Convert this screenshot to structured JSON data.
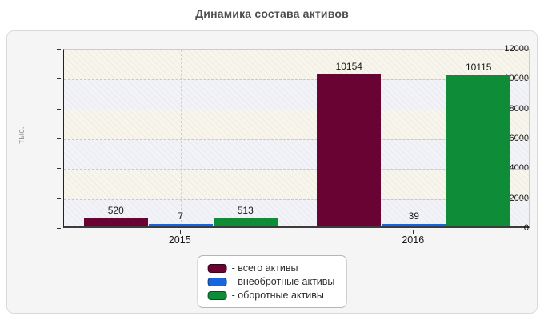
{
  "title": "Динамика состава активов",
  "chart_data": {
    "type": "bar",
    "categories": [
      "2015",
      "2016"
    ],
    "series": [
      {
        "name": "- всего активы",
        "color": "#690334",
        "values": [
          520,
          10154
        ]
      },
      {
        "name": "- внеобротные активы",
        "color": "#1766df",
        "values": [
          7,
          39
        ]
      },
      {
        "name": "- оборотные активы",
        "color": "#0e8c38",
        "values": [
          513,
          10115
        ]
      }
    ],
    "value_labels": [
      "520",
      "7",
      "513",
      "10154",
      "39",
      "10115"
    ],
    "xlabel": "",
    "ylabel": "тыс.",
    "ylim": [
      0,
      12000
    ],
    "ytick_step": 2000,
    "ytick_labels": [
      "0",
      "2000",
      "4000",
      "6000",
      "8000",
      "10000",
      "12000"
    ],
    "grid": true,
    "legend_position": "bottom-center"
  }
}
